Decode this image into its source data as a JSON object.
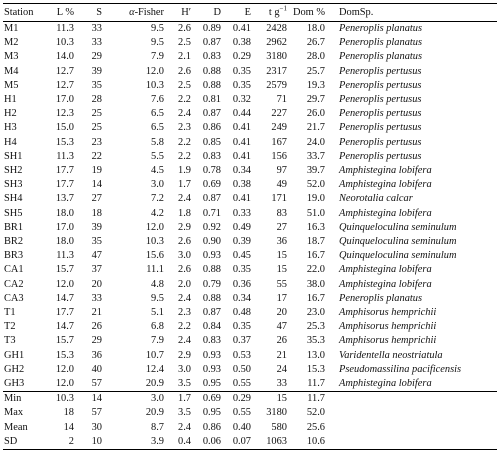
{
  "table": {
    "headers": {
      "station": "Station",
      "l_pct": "L %",
      "s": "S",
      "alpha_prefix": "α",
      "alpha_suffix": "-Fisher",
      "h_prime": "H′",
      "d": "D",
      "e": "E",
      "tg_prefix": "t g",
      "tg_exp": "−1",
      "dom_pct": "Dom %",
      "dom_sp": "DomSp."
    },
    "rows": [
      [
        "M1",
        "11.3",
        "33",
        "9.5",
        "2.6",
        "0.89",
        "0.41",
        "2428",
        "18.0",
        "Peneroplis planatus"
      ],
      [
        "M2",
        "10.3",
        "33",
        "9.5",
        "2.5",
        "0.87",
        "0.38",
        "2962",
        "26.7",
        "Peneroplis planatus"
      ],
      [
        "M3",
        "14.0",
        "29",
        "7.9",
        "2.1",
        "0.83",
        "0.29",
        "3180",
        "28.0",
        "Peneroplis planatus"
      ],
      [
        "M4",
        "12.7",
        "39",
        "12.0",
        "2.6",
        "0.88",
        "0.35",
        "2317",
        "25.7",
        "Peneroplis pertusus"
      ],
      [
        "M5",
        "12.7",
        "35",
        "10.3",
        "2.5",
        "0.88",
        "0.35",
        "2579",
        "19.3",
        "Peneroplis pertusus"
      ],
      [
        "H1",
        "17.0",
        "28",
        "7.6",
        "2.2",
        "0.81",
        "0.32",
        "71",
        "29.7",
        "Peneroplis pertusus"
      ],
      [
        "H2",
        "12.3",
        "25",
        "6.5",
        "2.4",
        "0.87",
        "0.44",
        "227",
        "26.0",
        "Peneroplis pertusus"
      ],
      [
        "H3",
        "15.0",
        "25",
        "6.5",
        "2.3",
        "0.86",
        "0.41",
        "249",
        "21.7",
        "Peneroplis pertusus"
      ],
      [
        "H4",
        "15.3",
        "23",
        "5.8",
        "2.2",
        "0.85",
        "0.41",
        "167",
        "24.0",
        "Peneroplis pertusus"
      ],
      [
        "SH1",
        "11.3",
        "22",
        "5.5",
        "2.2",
        "0.83",
        "0.41",
        "156",
        "33.7",
        "Peneroplis pertusus"
      ],
      [
        "SH2",
        "17.7",
        "19",
        "4.5",
        "1.9",
        "0.78",
        "0.34",
        "97",
        "39.7",
        "Amphistegina lobifera"
      ],
      [
        "SH3",
        "17.7",
        "14",
        "3.0",
        "1.7",
        "0.69",
        "0.38",
        "49",
        "52.0",
        "Amphistegina lobifera"
      ],
      [
        "SH4",
        "13.7",
        "27",
        "7.2",
        "2.4",
        "0.87",
        "0.41",
        "171",
        "19.0",
        "Neorotalia calcar"
      ],
      [
        "SH5",
        "18.0",
        "18",
        "4.2",
        "1.8",
        "0.71",
        "0.33",
        "83",
        "51.0",
        "Amphistegina lobifera"
      ],
      [
        "BR1",
        "17.0",
        "39",
        "12.0",
        "2.9",
        "0.92",
        "0.49",
        "27",
        "16.3",
        "Quinqueloculina seminulum"
      ],
      [
        "BR2",
        "18.0",
        "35",
        "10.3",
        "2.6",
        "0.90",
        "0.39",
        "36",
        "18.7",
        "Quinqueloculina seminulum"
      ],
      [
        "BR3",
        "11.3",
        "47",
        "15.6",
        "3.0",
        "0.93",
        "0.45",
        "15",
        "16.7",
        "Quinqueloculina seminulum"
      ],
      [
        "CA1",
        "15.7",
        "37",
        "11.1",
        "2.6",
        "0.88",
        "0.35",
        "15",
        "22.0",
        "Amphistegina lobifera"
      ],
      [
        "CA2",
        "12.0",
        "20",
        "4.8",
        "2.0",
        "0.79",
        "0.36",
        "55",
        "38.0",
        "Amphistegina lobifera"
      ],
      [
        "CA3",
        "14.7",
        "33",
        "9.5",
        "2.4",
        "0.88",
        "0.34",
        "17",
        "16.7",
        "Peneroplis planatus"
      ],
      [
        "T1",
        "17.7",
        "21",
        "5.1",
        "2.3",
        "0.87",
        "0.48",
        "20",
        "23.0",
        "Amphisorus hemprichii"
      ],
      [
        "T2",
        "14.7",
        "26",
        "6.8",
        "2.2",
        "0.84",
        "0.35",
        "47",
        "25.3",
        "Amphisorus hemprichii"
      ],
      [
        "T3",
        "15.7",
        "29",
        "7.9",
        "2.4",
        "0.83",
        "0.37",
        "26",
        "35.3",
        "Amphisorus hemprichii"
      ],
      [
        "GH1",
        "15.3",
        "36",
        "10.7",
        "2.9",
        "0.93",
        "0.53",
        "21",
        "13.0",
        "Varidentella neostriatula"
      ],
      [
        "GH2",
        "12.0",
        "40",
        "12.4",
        "3.0",
        "0.93",
        "0.50",
        "24",
        "15.3",
        "Pseudomassilina pacificensis"
      ],
      [
        "GH3",
        "12.0",
        "57",
        "20.9",
        "3.5",
        "0.95",
        "0.55",
        "33",
        "11.7",
        "Amphistegina lobifera"
      ]
    ],
    "summary": [
      [
        "Min",
        "10.3",
        "14",
        "3.0",
        "1.7",
        "0.69",
        "0.29",
        "15",
        "11.7",
        ""
      ],
      [
        "Max",
        "18",
        "57",
        "20.9",
        "3.5",
        "0.95",
        "0.55",
        "3180",
        "52.0",
        ""
      ],
      [
        "Mean",
        "14",
        "30",
        "8.7",
        "2.4",
        "0.86",
        "0.40",
        "580",
        "25.6",
        ""
      ],
      [
        "SD",
        "2",
        "10",
        "3.9",
        "0.4",
        "0.06",
        "0.07",
        "1063",
        "10.6",
        ""
      ]
    ]
  }
}
